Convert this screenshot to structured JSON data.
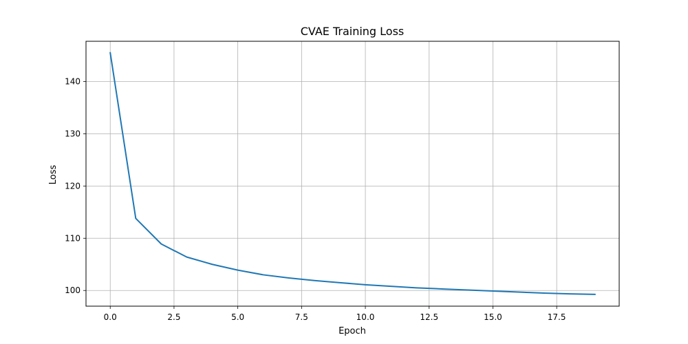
{
  "chart_data": {
    "type": "line",
    "title": "CVAE Training Loss",
    "xlabel": "Epoch",
    "ylabel": "Loss",
    "xlim": [
      -0.95,
      19.95
    ],
    "ylim": [
      97.0,
      147.7
    ],
    "xticks": [
      0.0,
      2.5,
      5.0,
      7.5,
      10.0,
      12.5,
      15.0,
      17.5
    ],
    "xtick_labels": [
      "0.0",
      "2.5",
      "5.0",
      "7.5",
      "10.0",
      "12.5",
      "15.0",
      "17.5"
    ],
    "yticks": [
      100,
      110,
      120,
      130,
      140
    ],
    "ytick_labels": [
      "100",
      "110",
      "120",
      "130",
      "140"
    ],
    "grid": true,
    "series": [
      {
        "color": "#1f77b4",
        "x": [
          0,
          1,
          2,
          3,
          4,
          5,
          6,
          7,
          8,
          9,
          10,
          11,
          12,
          13,
          14,
          15,
          16,
          17,
          18,
          19
        ],
        "values": [
          145.5,
          113.8,
          108.9,
          106.4,
          105.0,
          103.9,
          103.0,
          102.4,
          101.9,
          101.5,
          101.1,
          100.8,
          100.5,
          100.3,
          100.1,
          99.9,
          99.7,
          99.5,
          99.35,
          99.25
        ]
      }
    ]
  }
}
